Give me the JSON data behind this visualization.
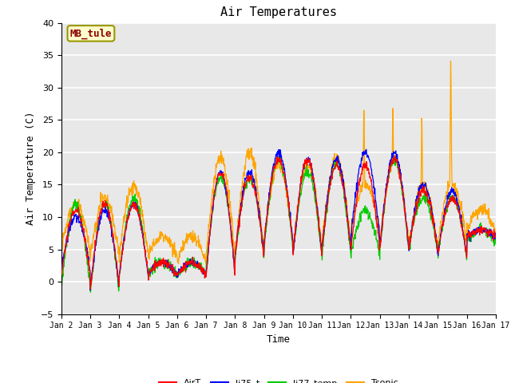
{
  "title": "Air Temperatures",
  "xlabel": "Time",
  "ylabel": "Air Temperature (C)",
  "ylim": [
    -5,
    40
  ],
  "xlim": [
    0,
    15
  ],
  "x_tick_labels": [
    "Jan 2",
    "Jan 3",
    "Jan 4",
    "Jan 5",
    "Jan 6",
    "Jan 7",
    "Jan 8",
    "Jan 9",
    "Jan 10",
    "Jan 11",
    "Jan 12",
    "Jan 13",
    "Jan 14",
    "Jan 15",
    "Jan 16",
    "Jan 17"
  ],
  "annotation_text": "MB_tule",
  "annotation_color": "#8B0000",
  "annotation_bg": "#FFFFCC",
  "annotation_edge": "#999900",
  "line_colors": {
    "AirT": "#FF0000",
    "li75_t": "#0000FF",
    "li77_temp": "#00CC00",
    "Tsonic": "#FFA500"
  },
  "background_color": "#E8E8E8",
  "grid_color": "#FFFFFF",
  "font_family": "monospace",
  "title_fontsize": 11,
  "label_fontsize": 9,
  "tick_fontsize": 7,
  "yticks": [
    -5,
    0,
    5,
    10,
    15,
    20,
    25,
    30,
    35,
    40
  ],
  "linewidth": 0.9
}
